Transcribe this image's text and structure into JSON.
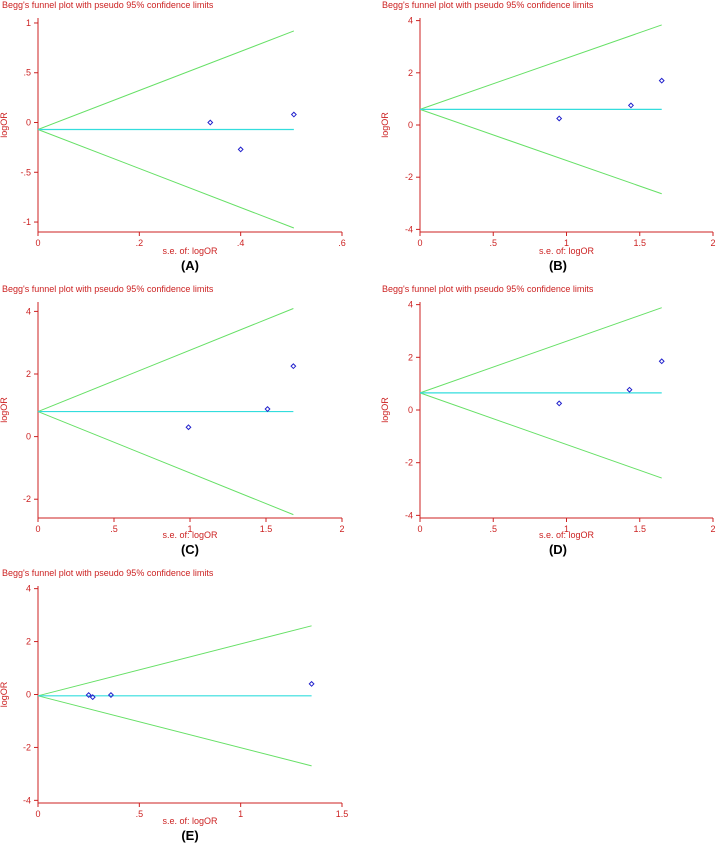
{
  "colors": {
    "axis": "#cc2222",
    "text": "#cc2222",
    "limits": "#66e066",
    "pooled": "#33dddd",
    "points": "#2222cc",
    "panel_label": "#000000"
  },
  "chart_data": [
    {
      "panel": "(A)",
      "type": "scatter",
      "title": "Begg's funnel plot with pseudo 95% confidence limits",
      "xlabel": "s.e. of: logOR",
      "ylabel": "logOR",
      "xlim": [
        0,
        0.6
      ],
      "ylim": [
        -1.1,
        1.05
      ],
      "xticks": [
        0,
        0.2,
        0.4,
        0.6
      ],
      "xtick_labels": [
        "0",
        ".2",
        ".4",
        ".6"
      ],
      "yticks": [
        1,
        0.5,
        0,
        -0.5,
        -1
      ],
      "ytick_labels": [
        "1",
        ".5",
        "0",
        "-.5",
        "-1"
      ],
      "pooled": -0.07,
      "xmax_line": 0.505,
      "points": [
        {
          "x": 0.34,
          "y": 0.0
        },
        {
          "x": 0.4,
          "y": -0.27
        },
        {
          "x": 0.505,
          "y": 0.08
        }
      ]
    },
    {
      "panel": "(B)",
      "type": "scatter",
      "title": "Begg's funnel plot with pseudo 95% confidence limits",
      "xlabel": "s.e. of: logOR",
      "ylabel": "logOR",
      "xlim": [
        0,
        2
      ],
      "ylim": [
        -4.1,
        4.1
      ],
      "xticks": [
        0,
        0.5,
        1,
        1.5,
        2
      ],
      "xtick_labels": [
        "0",
        ".5",
        "1",
        "1.5",
        "2"
      ],
      "yticks": [
        4,
        2,
        0,
        -2,
        -4
      ],
      "ytick_labels": [
        "4",
        "2",
        "0",
        "-2",
        "-4"
      ],
      "pooled": 0.6,
      "xmax_line": 1.65,
      "points": [
        {
          "x": 0.95,
          "y": 0.25
        },
        {
          "x": 1.44,
          "y": 0.75
        },
        {
          "x": 1.65,
          "y": 1.7
        }
      ]
    },
    {
      "panel": "(C)",
      "type": "scatter",
      "title": "Begg's funnel plot with pseudo 95% confidence limits",
      "xlabel": "s.e. of: logOR",
      "ylabel": "logOR",
      "xlim": [
        0,
        2
      ],
      "ylim": [
        -2.6,
        4.3
      ],
      "xticks": [
        0,
        0.5,
        1,
        1.5,
        2
      ],
      "xtick_labels": [
        "0",
        ".5",
        "1",
        "1.5",
        "2"
      ],
      "yticks": [
        4,
        2,
        0,
        -2
      ],
      "ytick_labels": [
        "4",
        "2",
        "0",
        "-2"
      ],
      "pooled": 0.8,
      "xmax_line": 1.68,
      "points": [
        {
          "x": 0.99,
          "y": 0.3
        },
        {
          "x": 1.51,
          "y": 0.88
        },
        {
          "x": 1.68,
          "y": 2.25
        }
      ]
    },
    {
      "panel": "(D)",
      "type": "scatter",
      "title": "Begg's funnel plot with pseudo 95% confidence limits",
      "xlabel": "s.e. of: logOR",
      "ylabel": "logOR",
      "xlim": [
        0,
        2
      ],
      "ylim": [
        -4.1,
        4.1
      ],
      "xticks": [
        0,
        0.5,
        1,
        1.5,
        2
      ],
      "xtick_labels": [
        "0",
        ".5",
        "1",
        "1.5",
        "2"
      ],
      "yticks": [
        4,
        2,
        0,
        -2,
        -4
      ],
      "ytick_labels": [
        "4",
        "2",
        "0",
        "-2",
        "-4"
      ],
      "pooled": 0.65,
      "xmax_line": 1.65,
      "points": [
        {
          "x": 0.95,
          "y": 0.25
        },
        {
          "x": 1.43,
          "y": 0.77
        },
        {
          "x": 1.65,
          "y": 1.85
        }
      ]
    },
    {
      "panel": "(E)",
      "type": "scatter",
      "title": "Begg's funnel plot with pseudo 95% confidence limits",
      "xlabel": "s.e. of: logOR",
      "ylabel": "logOR",
      "xlim": [
        0,
        1.5
      ],
      "ylim": [
        -4.1,
        4.1
      ],
      "xticks": [
        0,
        0.5,
        1,
        1.5
      ],
      "xtick_labels": [
        "0",
        ".5",
        "1",
        "1.5"
      ],
      "yticks": [
        4,
        2,
        0,
        -2,
        -4
      ],
      "ytick_labels": [
        "4",
        "2",
        "0",
        "-2",
        "-4"
      ],
      "pooled": -0.05,
      "xmax_line": 1.35,
      "points": [
        {
          "x": 0.25,
          "y": -0.02
        },
        {
          "x": 0.27,
          "y": -0.1
        },
        {
          "x": 0.36,
          "y": -0.02
        },
        {
          "x": 1.35,
          "y": 0.4
        }
      ]
    }
  ]
}
